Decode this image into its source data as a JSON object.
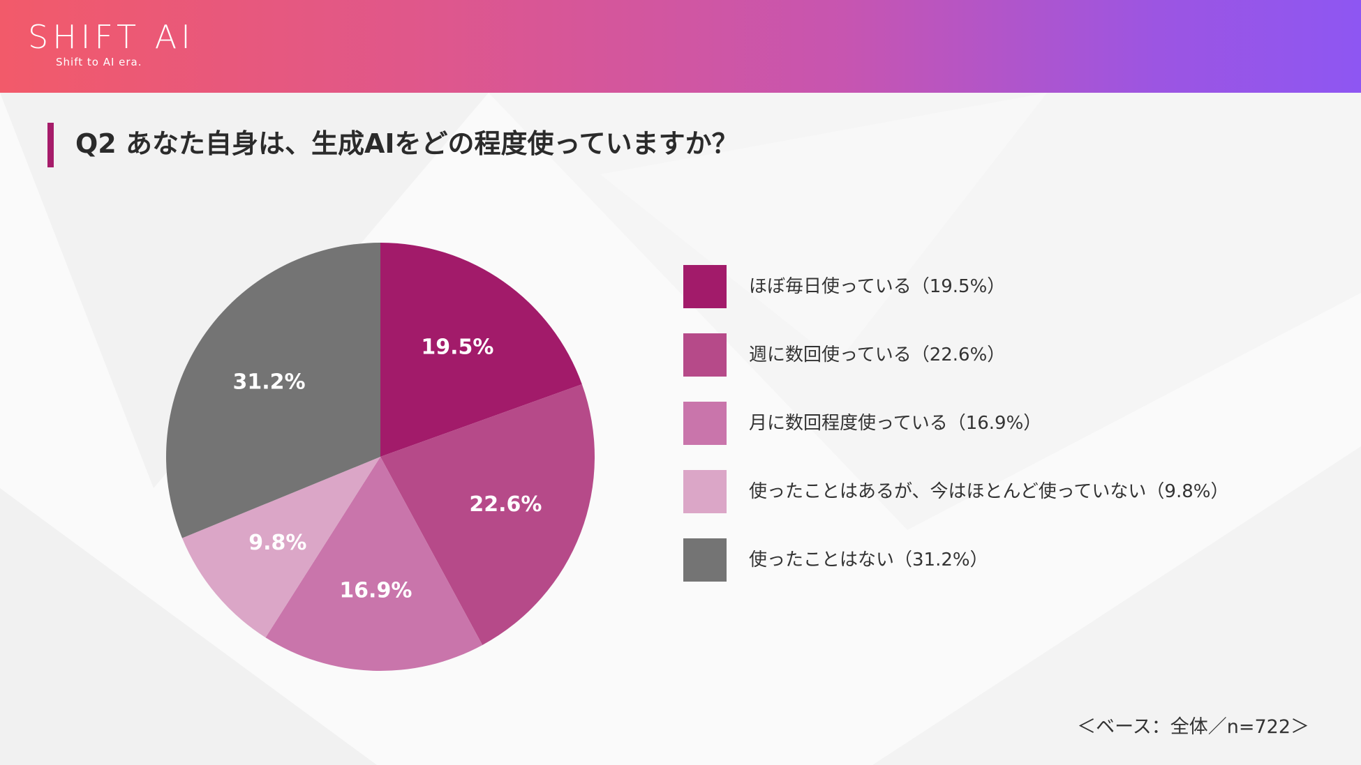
{
  "brand": {
    "name": "SHIFT AI",
    "tagline": "Shift to AI era."
  },
  "title": "Q2 あなた自身は、生成AIをどの程度使っていますか？",
  "base_note": "＜ベース：全体／n=722＞",
  "chart_data": {
    "type": "pie",
    "categories": [
      "ほぼ毎日使っている（19.5%）",
      "週に数回使っている（22.6%）",
      "月に数回程度使っている（16.9%）",
      "使ったことはあるが、今はほとんど使っていない（9.8%）",
      "使ったことはない（31.2%）"
    ],
    "values": [
      19.5,
      22.6,
      16.9,
      9.8,
      31.2
    ],
    "data_labels": [
      "19.5%",
      "22.6%",
      "16.9%",
      "9.8%",
      "31.2%"
    ],
    "colors": [
      "#a21b6a",
      "#b64a89",
      "#c975ab",
      "#dba6c7",
      "#747474"
    ],
    "start_angle": "12 o'clock",
    "direction": "clockwise",
    "legend_position": "right"
  }
}
